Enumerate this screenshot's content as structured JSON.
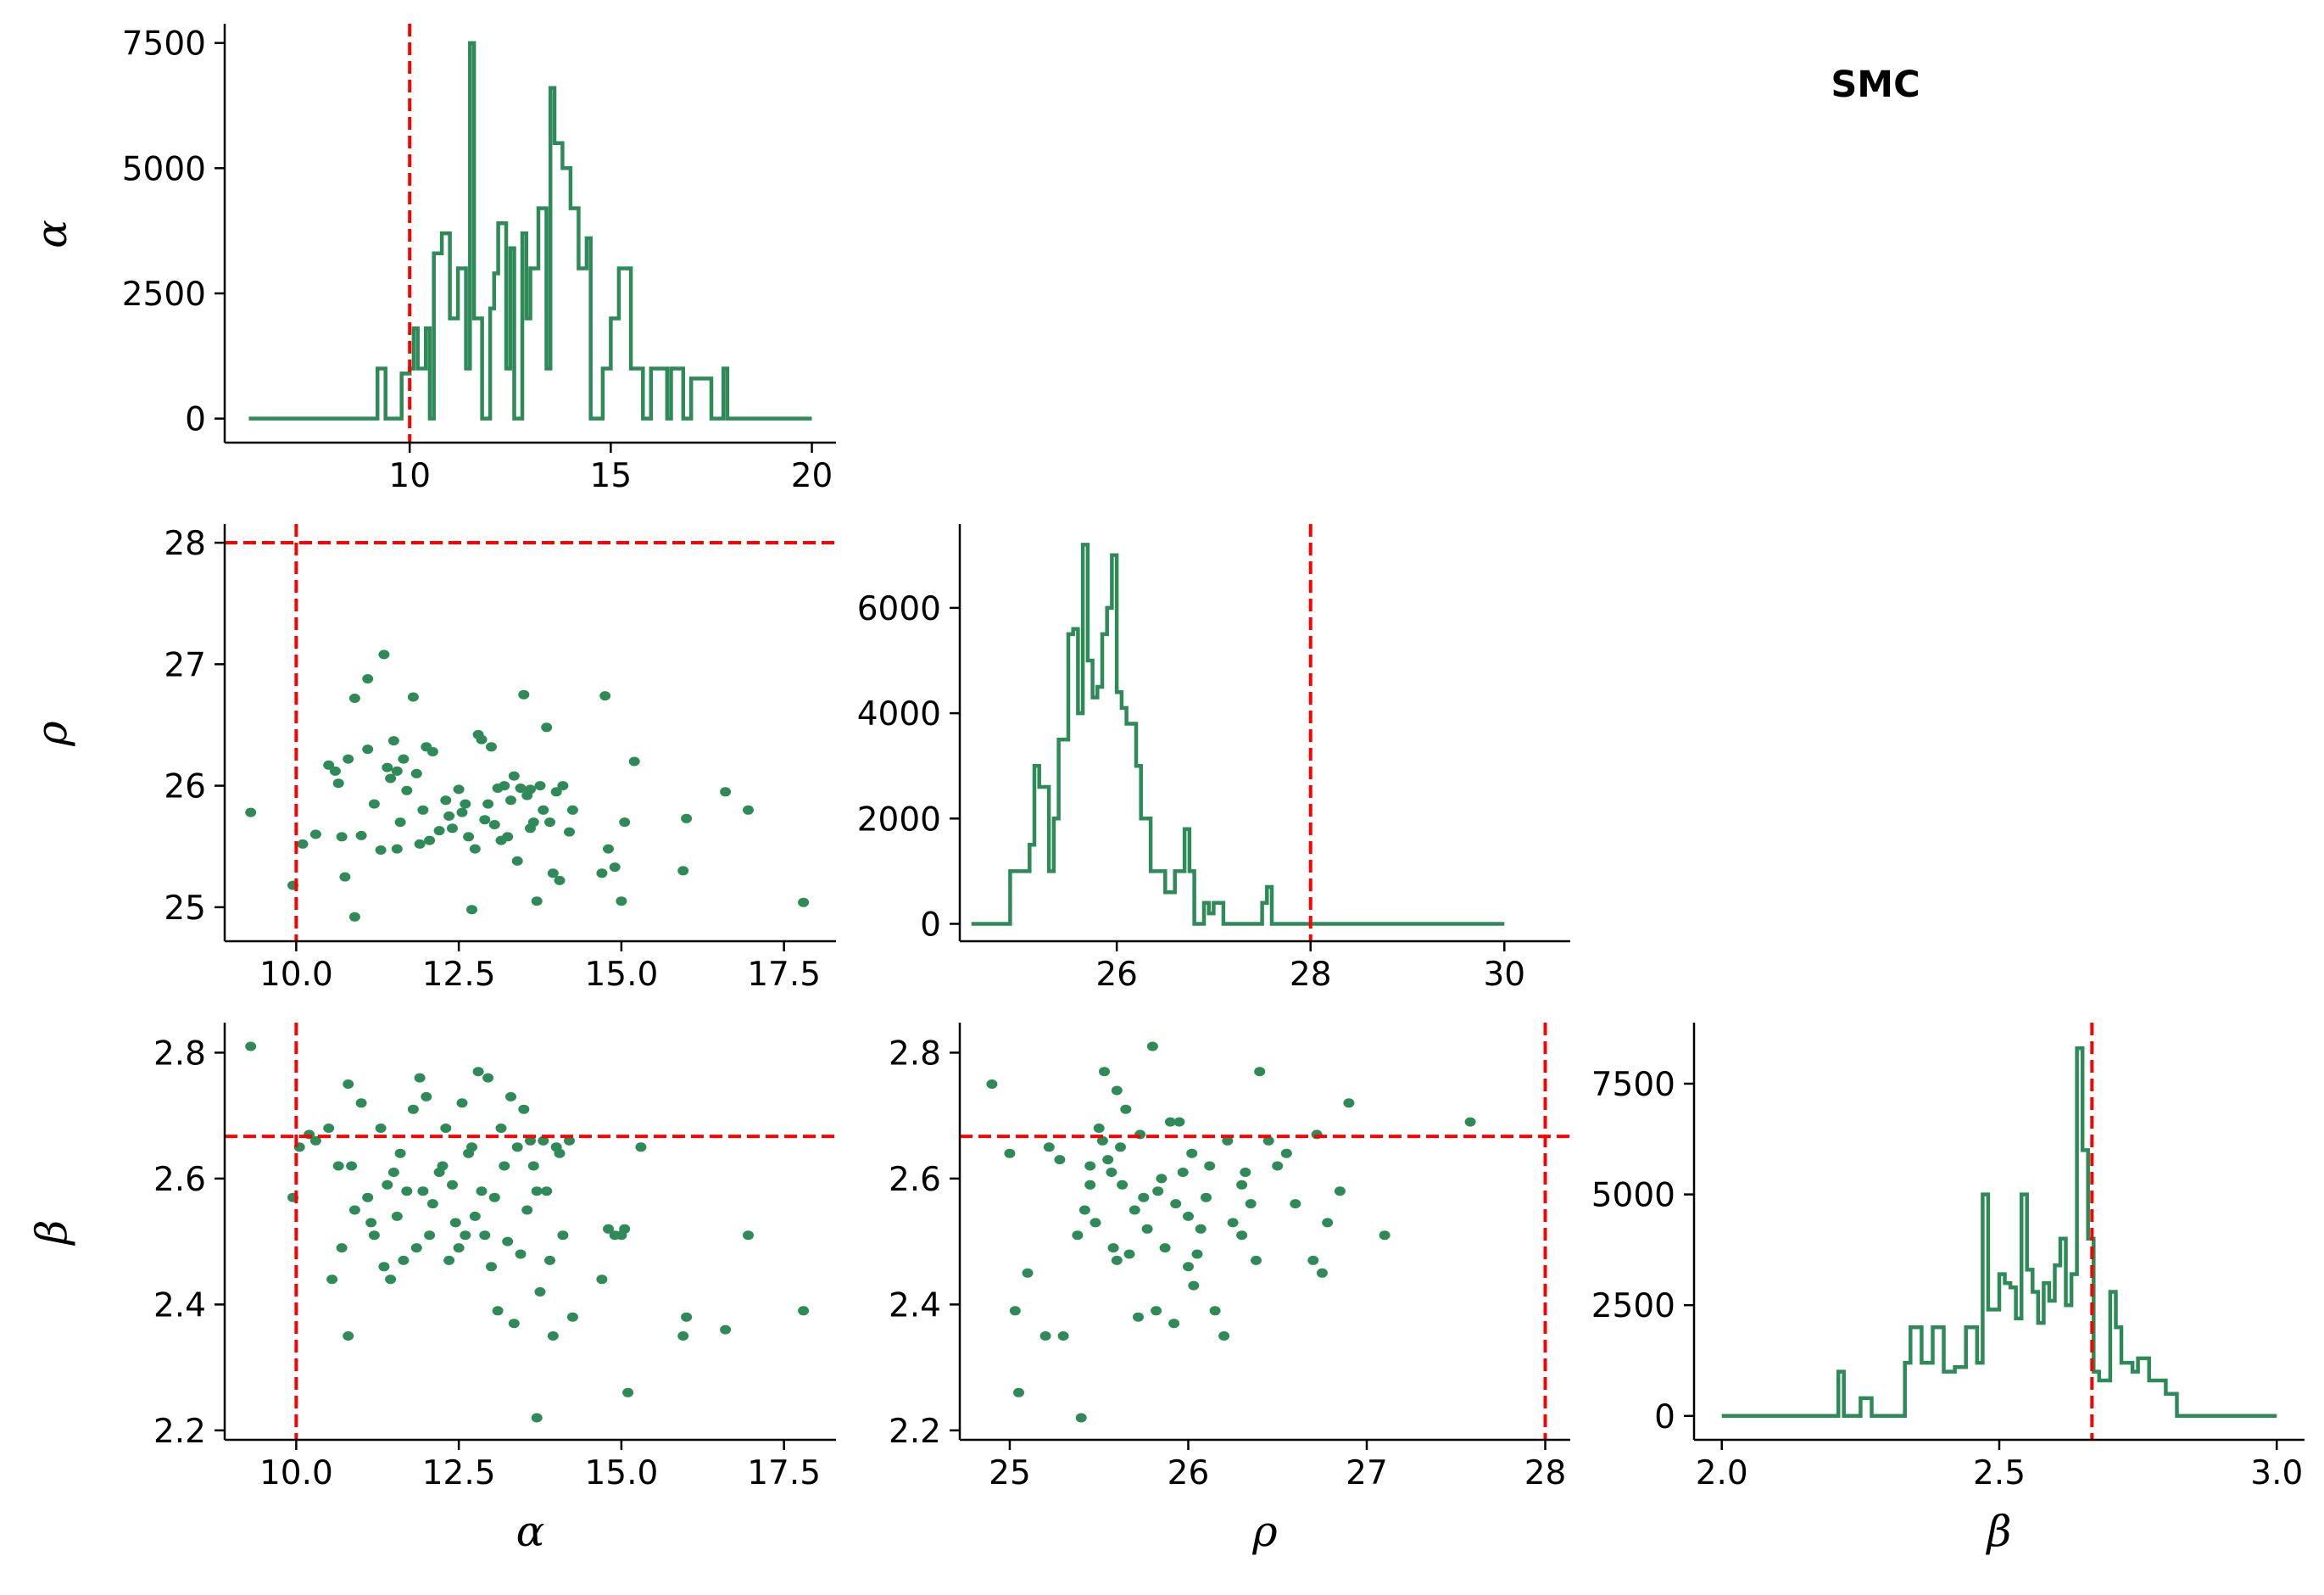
{
  "figure": {
    "title": "SMC",
    "colors": {
      "posterior": "#2e8b57",
      "truth": "#ff0000",
      "axis": "#000000"
    }
  },
  "chart_data": [
    {
      "type": "histogram",
      "panel": "alpha-hist",
      "title": "",
      "xlabel": "",
      "ylabel": "α",
      "xlim": [
        5.4,
        20.6
      ],
      "ylim": [
        -480,
        7850
      ],
      "xticks": [
        10,
        15,
        20
      ],
      "yticks": [
        0,
        2500,
        5000,
        7500
      ],
      "truth": 10,
      "x": [
        6,
        9.2,
        9.4,
        9.8,
        10,
        10.1,
        10.2,
        10.4,
        10.5,
        10.6,
        10.8,
        11,
        11.2,
        11.4,
        11.5,
        11.6,
        11.8,
        12,
        12.1,
        12.2,
        12.4,
        12.5,
        12.6,
        12.8,
        12.9,
        13,
        13.2,
        13.4,
        13.5,
        13.6,
        13.8,
        14,
        14.2,
        14.4,
        14.5,
        14.8,
        15,
        15.2,
        15.5,
        15.8,
        16,
        16.4,
        16.5,
        16.8,
        17,
        17.5,
        17.8,
        17.9,
        20
      ],
      "values": [
        0,
        1000,
        0,
        900,
        1000,
        1800,
        1000,
        1800,
        0,
        3300,
        3700,
        2000,
        3000,
        1000,
        7500,
        2000,
        0,
        2200,
        2900,
        3900,
        1000,
        3400,
        0,
        3700,
        2000,
        3000,
        4200,
        1000,
        6600,
        5500,
        5000,
        4200,
        3000,
        3600,
        0,
        1000,
        2000,
        3000,
        1000,
        0,
        1000,
        0,
        1000,
        0,
        800,
        0,
        1000,
        0,
        0
      ]
    },
    {
      "type": "scatter",
      "panel": "rho-vs-alpha",
      "title": "",
      "xlabel": "",
      "ylabel": "ρ",
      "xlim": [
        8.9,
        18.3
      ],
      "ylim": [
        24.72,
        28.14
      ],
      "xticks": [
        10.0,
        12.5,
        15.0,
        17.5
      ],
      "yticks": [
        25,
        26,
        27,
        28
      ],
      "truth": {
        "x": 10,
        "y": 28
      },
      "x": [
        9.3,
        9.95,
        10.1,
        10.3,
        10.5,
        10.6,
        10.7,
        10.75,
        10.8,
        10.9,
        10.9,
        11.0,
        11.1,
        11.1,
        11.2,
        11.3,
        11.35,
        11.4,
        11.45,
        11.5,
        11.55,
        11.6,
        11.65,
        11.7,
        11.8,
        11.85,
        11.9,
        11.95,
        12.0,
        12.05,
        12.1,
        12.2,
        12.3,
        12.4,
        12.5,
        12.55,
        12.6,
        12.65,
        12.7,
        12.75,
        12.8,
        12.85,
        12.9,
        12.95,
        13.0,
        13.05,
        13.1,
        13.2,
        13.25,
        13.3,
        13.35,
        13.4,
        13.45,
        13.5,
        13.55,
        13.6,
        13.65,
        13.7,
        13.75,
        13.8,
        13.85,
        13.9,
        13.95,
        14.0,
        14.05,
        14.1,
        14.2,
        14.25,
        14.7,
        14.75,
        14.8,
        14.9,
        15.0,
        15.05,
        15.2,
        15.95,
        16.0,
        16.6,
        16.95,
        17.8,
        10.65,
        11.55,
        12.35,
        13.15,
        13.6
      ],
      "y": [
        25.78,
        25.18,
        25.52,
        25.6,
        26.17,
        26.12,
        25.58,
        25.25,
        26.22,
        26.72,
        24.92,
        25.59,
        26.3,
        26.88,
        25.85,
        25.47,
        27.08,
        26.15,
        26.06,
        26.37,
        25.48,
        25.7,
        26.22,
        25.96,
        26.73,
        26.1,
        25.52,
        25.8,
        26.32,
        25.55,
        26.28,
        25.63,
        25.88,
        25.65,
        25.97,
        25.78,
        25.85,
        25.58,
        24.98,
        25.48,
        26.42,
        26.38,
        25.72,
        25.85,
        26.32,
        25.68,
        25.98,
        26.0,
        25.58,
        25.88,
        26.08,
        25.38,
        25.98,
        26.75,
        25.92,
        25.97,
        25.7,
        25.05,
        26.0,
        25.8,
        26.48,
        25.7,
        25.28,
        25.95,
        25.22,
        26.0,
        25.62,
        25.8,
        25.28,
        26.74,
        25.48,
        25.33,
        25.05,
        25.7,
        26.2,
        25.3,
        25.73,
        25.95,
        25.8,
        25.04,
        26.02,
        26.12,
        25.75,
        25.55,
        25.65
      ]
    },
    {
      "type": "histogram",
      "panel": "rho-hist",
      "title": "",
      "xlabel": "",
      "ylabel": "",
      "xlim": [
        24.38,
        30.68
      ],
      "ylim": [
        -330,
        7560
      ],
      "xticks": [
        26,
        28,
        30
      ],
      "yticks": [
        0,
        2000,
        4000,
        6000
      ],
      "truth": 28,
      "x": [
        24.5,
        24.9,
        25.0,
        25.1,
        25.15,
        25.2,
        25.3,
        25.35,
        25.4,
        25.5,
        25.55,
        25.6,
        25.65,
        25.7,
        25.75,
        25.8,
        25.85,
        25.9,
        25.95,
        26.0,
        26.05,
        26.1,
        26.2,
        26.25,
        26.3,
        26.35,
        26.4,
        26.5,
        26.55,
        26.6,
        26.7,
        26.75,
        26.8,
        26.9,
        26.95,
        27.0,
        27.1,
        27.5,
        27.55,
        27.6,
        27.65,
        30.0
      ],
      "values": [
        0,
        1000,
        1000,
        1500,
        3000,
        2600,
        1000,
        2000,
        3500,
        5500,
        5600,
        4000,
        7200,
        5000,
        4300,
        4500,
        5500,
        6000,
        7000,
        4400,
        4100,
        3800,
        3000,
        2000,
        2000,
        1000,
        1000,
        600,
        600,
        1000,
        1800,
        1000,
        0,
        400,
        200,
        400,
        0,
        400,
        700,
        0,
        0,
        0
      ]
    },
    {
      "type": "scatter",
      "panel": "beta-vs-alpha",
      "title": "",
      "xlabel": "α",
      "ylabel": "β",
      "xlim": [
        8.9,
        18.3
      ],
      "ylim": [
        2.185,
        2.845
      ],
      "xticks": [
        10.0,
        12.5,
        15.0,
        17.5
      ],
      "yticks": [
        2.2,
        2.4,
        2.6,
        2.8
      ],
      "truth": {
        "x": 10,
        "y": 2.667
      },
      "x": [
        9.3,
        9.95,
        10.05,
        10.2,
        10.3,
        10.5,
        10.55,
        10.65,
        10.7,
        10.8,
        10.8,
        10.85,
        10.9,
        11.0,
        11.1,
        11.15,
        11.2,
        11.3,
        11.35,
        11.4,
        11.45,
        11.5,
        11.55,
        11.6,
        11.65,
        11.7,
        11.8,
        11.85,
        11.9,
        11.95,
        12.0,
        12.05,
        12.1,
        12.2,
        12.25,
        12.3,
        12.35,
        12.4,
        12.45,
        12.5,
        12.55,
        12.6,
        12.65,
        12.7,
        12.75,
        12.8,
        12.85,
        12.9,
        12.95,
        13.0,
        13.05,
        13.1,
        13.15,
        13.2,
        13.25,
        13.3,
        13.35,
        13.4,
        13.45,
        13.5,
        13.55,
        13.6,
        13.65,
        13.7,
        13.75,
        13.8,
        13.85,
        13.9,
        13.95,
        14.0,
        14.05,
        14.1,
        14.2,
        14.25,
        14.7,
        14.8,
        14.9,
        15.0,
        15.05,
        15.3,
        15.95,
        16.0,
        16.6,
        16.95,
        17.8,
        13.7,
        15.1
      ],
      "y": [
        2.81,
        2.57,
        2.65,
        2.67,
        2.66,
        2.68,
        2.44,
        2.62,
        2.49,
        2.35,
        2.75,
        2.62,
        2.55,
        2.72,
        2.57,
        2.53,
        2.51,
        2.68,
        2.46,
        2.59,
        2.44,
        2.61,
        2.54,
        2.64,
        2.47,
        2.58,
        2.71,
        2.49,
        2.76,
        2.58,
        2.73,
        2.51,
        2.56,
        2.61,
        2.62,
        2.68,
        2.47,
        2.59,
        2.53,
        2.49,
        2.72,
        2.51,
        2.64,
        2.65,
        2.54,
        2.77,
        2.58,
        2.51,
        2.76,
        2.46,
        2.57,
        2.39,
        2.68,
        2.62,
        2.5,
        2.73,
        2.37,
        2.65,
        2.48,
        2.71,
        2.55,
        2.66,
        2.62,
        2.58,
        2.42,
        2.66,
        2.58,
        2.47,
        2.35,
        2.65,
        2.64,
        2.51,
        2.66,
        2.38,
        2.44,
        2.52,
        2.51,
        2.51,
        2.52,
        2.65,
        2.35,
        2.38,
        2.36,
        2.51,
        2.39,
        2.22,
        2.26
      ]
    },
    {
      "type": "scatter",
      "panel": "beta-vs-rho",
      "title": "",
      "xlabel": "ρ",
      "ylabel": "",
      "xlim": [
        24.72,
        28.14
      ],
      "ylim": [
        2.185,
        2.845
      ],
      "xticks": [
        25,
        26,
        27,
        28
      ],
      "yticks": [
        2.2,
        2.4,
        2.6,
        2.8
      ],
      "truth": {
        "x": 28,
        "y": 2.667
      },
      "x": [
        24.9,
        25.0,
        25.03,
        25.05,
        25.1,
        25.2,
        25.22,
        25.28,
        25.3,
        25.38,
        25.4,
        25.42,
        25.45,
        25.48,
        25.5,
        25.52,
        25.53,
        25.55,
        25.57,
        25.58,
        25.6,
        25.62,
        25.63,
        25.65,
        25.67,
        25.7,
        25.72,
        25.73,
        25.75,
        25.77,
        25.8,
        25.82,
        25.83,
        25.85,
        25.87,
        25.9,
        25.92,
        25.93,
        25.95,
        25.97,
        26.0,
        26.02,
        26.03,
        26.05,
        26.07,
        26.1,
        26.12,
        26.15,
        26.2,
        26.22,
        26.25,
        26.3,
        26.32,
        26.35,
        26.38,
        26.4,
        26.45,
        26.5,
        26.55,
        26.6,
        26.7,
        26.72,
        26.75,
        26.78,
        26.85,
        26.9,
        27.1,
        27.58,
        25.45,
        25.6,
        26.0,
        26.3
      ],
      "y": [
        2.75,
        2.64,
        2.39,
        2.26,
        2.45,
        2.35,
        2.65,
        2.63,
        2.35,
        2.51,
        2.22,
        2.55,
        2.59,
        2.53,
        2.68,
        2.66,
        2.77,
        2.63,
        2.61,
        2.49,
        2.47,
        2.65,
        2.59,
        2.71,
        2.48,
        2.55,
        2.38,
        2.67,
        2.57,
        2.52,
        2.81,
        2.39,
        2.58,
        2.6,
        2.49,
        2.69,
        2.37,
        2.56,
        2.69,
        2.61,
        2.54,
        2.64,
        2.43,
        2.48,
        2.52,
        2.57,
        2.62,
        2.39,
        2.35,
        2.66,
        2.53,
        2.59,
        2.61,
        2.56,
        2.47,
        2.77,
        2.66,
        2.62,
        2.64,
        2.56,
        2.47,
        2.67,
        2.45,
        2.53,
        2.58,
        2.72,
        2.51,
        2.69,
        2.62,
        2.74,
        2.46,
        2.51
      ]
    },
    {
      "type": "histogram",
      "panel": "beta-hist",
      "title": "",
      "xlabel": "β",
      "ylabel": "",
      "xlim": [
        1.95,
        3.05
      ],
      "ylim": [
        -540,
        8840
      ],
      "xticks": [
        2.0,
        2.5,
        3.0
      ],
      "yticks": [
        0,
        2500,
        5000,
        7500
      ],
      "truth": 2.667,
      "x": [
        2.0,
        2.21,
        2.22,
        2.25,
        2.27,
        2.3,
        2.33,
        2.34,
        2.36,
        2.38,
        2.4,
        2.42,
        2.44,
        2.46,
        2.47,
        2.48,
        2.5,
        2.51,
        2.52,
        2.53,
        2.54,
        2.55,
        2.56,
        2.57,
        2.58,
        2.59,
        2.6,
        2.61,
        2.62,
        2.63,
        2.64,
        2.65,
        2.66,
        2.67,
        2.68,
        2.7,
        2.71,
        2.72,
        2.74,
        2.75,
        2.77,
        2.8,
        2.82,
        3.0
      ],
      "values": [
        0,
        1000,
        0,
        400,
        0,
        0,
        1200,
        2000,
        1200,
        2000,
        1000,
        1100,
        2000,
        1200,
        5000,
        2400,
        3200,
        3000,
        2900,
        2200,
        5000,
        3300,
        2800,
        2100,
        3000,
        2600,
        3400,
        4000,
        2500,
        3200,
        8300,
        6000,
        4000,
        1000,
        800,
        2800,
        2000,
        1200,
        1000,
        1300,
        800,
        500,
        0,
        0
      ]
    }
  ]
}
